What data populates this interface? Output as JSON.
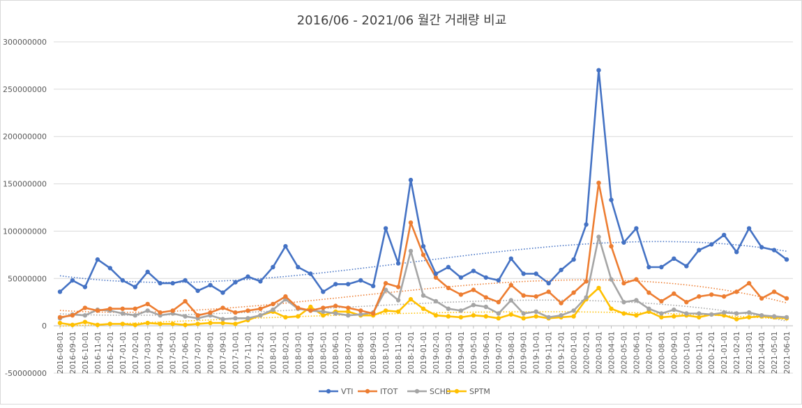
{
  "chart_data": {
    "type": "line",
    "title": "2016/06 - 2021/06 월간 거래량 비교",
    "xlabel": "",
    "ylabel": "",
    "ylim": [
      -50000000,
      300000000
    ],
    "yticks": [
      "300000000",
      "250000000",
      "200000000",
      "150000000",
      "100000000",
      "50000000",
      "0",
      "-50000000"
    ],
    "ytick_values": [
      300000000,
      250000000,
      200000000,
      150000000,
      100000000,
      50000000,
      0,
      -50000000
    ],
    "grid": true,
    "legend_position": "bottom",
    "trendline": "polynomial (dotted)",
    "categories": [
      "2016-08-01",
      "2016-09-01",
      "2016-10-01",
      "2016-11-01",
      "2016-12-01",
      "2017-01-01",
      "2017-02-01",
      "2017-03-01",
      "2017-04-01",
      "2017-05-01",
      "2017-06-01",
      "2017-07-01",
      "2017-08-01",
      "2017-09-01",
      "2017-10-01",
      "2017-11-01",
      "2017-12-01",
      "2018-01-01",
      "2018-02-01",
      "2018-03-01",
      "2018-04-01",
      "2018-05-01",
      "2018-06-01",
      "2018-07-01",
      "2018-08-01",
      "2018-09-01",
      "2018-10-01",
      "2018-11-01",
      "2018-12-01",
      "2019-01-01",
      "2019-02-01",
      "2019-03-01",
      "2019-04-01",
      "2019-05-01",
      "2019-06-01",
      "2019-07-01",
      "2019-08-01",
      "2019-09-01",
      "2019-10-01",
      "2019-11-01",
      "2019-12-01",
      "2020-01-01",
      "2020-02-01",
      "2020-03-01",
      "2020-04-01",
      "2020-05-01",
      "2020-06-01",
      "2020-07-01",
      "2020-08-01",
      "2020-09-01",
      "2020-10-01",
      "2020-11-01",
      "2020-12-01",
      "2021-01-01",
      "2021-02-01",
      "2021-03-01",
      "2021-04-01",
      "2021-05-01",
      "2021-06-01"
    ],
    "series": [
      {
        "name": "VTI",
        "color": "#4472C4",
        "values": [
          36000000,
          48000000,
          41000000,
          70000000,
          61000000,
          48000000,
          41000000,
          57000000,
          45000000,
          45000000,
          48000000,
          37000000,
          43000000,
          35000000,
          46000000,
          52000000,
          47000000,
          62000000,
          84000000,
          62000000,
          55000000,
          36000000,
          44000000,
          44000000,
          48000000,
          42000000,
          103000000,
          66000000,
          154000000,
          84000000,
          55000000,
          62000000,
          51000000,
          58000000,
          51000000,
          48000000,
          71000000,
          55000000,
          55000000,
          45000000,
          59000000,
          70000000,
          107000000,
          270000000,
          133000000,
          88000000,
          103000000,
          62000000,
          62000000,
          71000000,
          63000000,
          80000000,
          86000000,
          96000000,
          78000000,
          103000000,
          83000000,
          80000000,
          70000000
        ]
      },
      {
        "name": "ITOT",
        "color": "#ED7D31",
        "values": [
          9000000,
          11000000,
          19000000,
          16000000,
          18000000,
          18000000,
          18000000,
          23000000,
          14000000,
          16000000,
          26000000,
          11000000,
          14000000,
          19000000,
          14000000,
          16000000,
          18000000,
          23000000,
          31000000,
          19000000,
          16000000,
          19000000,
          21000000,
          19000000,
          16000000,
          13000000,
          45000000,
          41000000,
          109000000,
          75000000,
          51000000,
          40000000,
          33000000,
          38000000,
          30000000,
          25000000,
          43000000,
          32000000,
          31000000,
          36000000,
          24000000,
          35000000,
          47000000,
          151000000,
          84000000,
          45000000,
          49000000,
          35000000,
          26000000,
          34000000,
          25000000,
          31000000,
          33000000,
          31000000,
          36000000,
          45000000,
          29000000,
          36000000,
          29000000
        ]
      },
      {
        "name": "SCHB",
        "color": "#A5A5A5",
        "values": [
          8000000,
          12000000,
          11000000,
          17000000,
          16000000,
          13000000,
          11000000,
          16000000,
          11000000,
          13000000,
          10000000,
          8000000,
          11000000,
          7000000,
          8000000,
          8000000,
          11000000,
          17000000,
          28000000,
          18000000,
          16000000,
          15000000,
          13000000,
          11000000,
          12000000,
          14000000,
          38000000,
          27000000,
          79000000,
          32000000,
          26000000,
          18000000,
          16000000,
          22000000,
          20000000,
          13000000,
          27000000,
          13000000,
          15000000,
          9000000,
          11000000,
          16000000,
          30000000,
          94000000,
          49000000,
          25000000,
          27000000,
          18000000,
          13000000,
          17000000,
          13000000,
          13000000,
          12000000,
          14000000,
          13000000,
          14000000,
          11000000,
          10000000,
          9000000
        ]
      },
      {
        "name": "SPTM",
        "color": "#FFC000",
        "values": [
          3000000,
          1000000,
          4000000,
          1000000,
          2000000,
          2000000,
          1000000,
          3000000,
          2000000,
          2000000,
          1000000,
          2000000,
          3000000,
          3000000,
          2000000,
          6000000,
          11000000,
          15000000,
          9000000,
          10000000,
          20000000,
          11000000,
          15000000,
          15000000,
          11000000,
          11000000,
          16000000,
          15000000,
          28000000,
          18000000,
          11000000,
          10000000,
          9000000,
          11000000,
          10000000,
          8000000,
          12000000,
          8000000,
          10000000,
          8000000,
          9000000,
          10000000,
          28000000,
          40000000,
          18000000,
          13000000,
          11000000,
          15000000,
          9000000,
          10000000,
          11000000,
          9000000,
          12000000,
          11000000,
          7000000,
          9000000,
          10000000,
          9000000,
          8000000
        ]
      }
    ]
  }
}
